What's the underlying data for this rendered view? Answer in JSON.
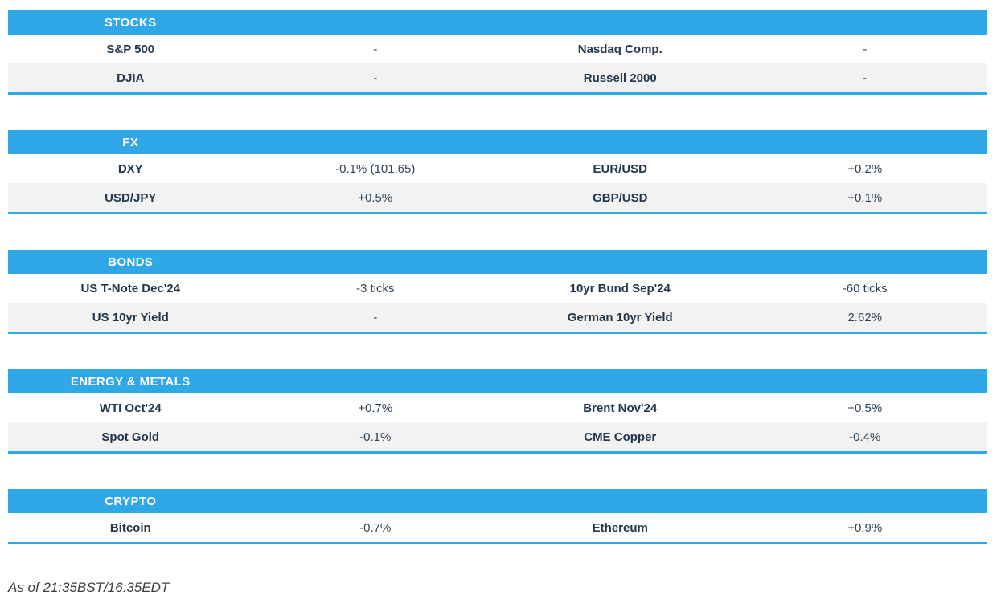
{
  "colors": {
    "header_blue": "#30a7e6",
    "row_alt": "#f2f2f2",
    "label_text": "#21374d",
    "value_text": "#2d4358",
    "footer_text": "#3d3d3d"
  },
  "sections": [
    {
      "title": "STOCKS",
      "rows": [
        {
          "cells": [
            "S&P 500",
            "-",
            "Nasdaq Comp.",
            "-"
          ]
        },
        {
          "cells": [
            "DJIA",
            "-",
            "Russell 2000",
            "-"
          ]
        }
      ]
    },
    {
      "title": "FX",
      "rows": [
        {
          "cells": [
            "DXY",
            "-0.1% (101.65)",
            "EUR/USD",
            "+0.2%"
          ]
        },
        {
          "cells": [
            "USD/JPY",
            "+0.5%",
            "GBP/USD",
            "+0.1%"
          ]
        }
      ]
    },
    {
      "title": "BONDS",
      "rows": [
        {
          "cells": [
            "US T-Note Dec'24",
            "-3 ticks",
            "10yr Bund Sep'24",
            "-60 ticks"
          ]
        },
        {
          "cells": [
            "US 10yr Yield",
            "-",
            "German 10yr Yield",
            "2.62%"
          ]
        }
      ]
    },
    {
      "title": "ENERGY & METALS",
      "rows": [
        {
          "cells": [
            "WTI Oct'24",
            "+0.7%",
            "Brent Nov'24",
            "+0.5%"
          ]
        },
        {
          "cells": [
            "Spot Gold",
            "-0.1%",
            "CME Copper",
            "-0.4%"
          ]
        }
      ]
    },
    {
      "title": "CRYPTO",
      "rows": [
        {
          "cells": [
            "Bitcoin",
            "-0.7%",
            "Ethereum",
            "+0.9%"
          ]
        }
      ]
    }
  ],
  "footer": {
    "as_of": "As of 21:35BST/16:35EDT"
  }
}
